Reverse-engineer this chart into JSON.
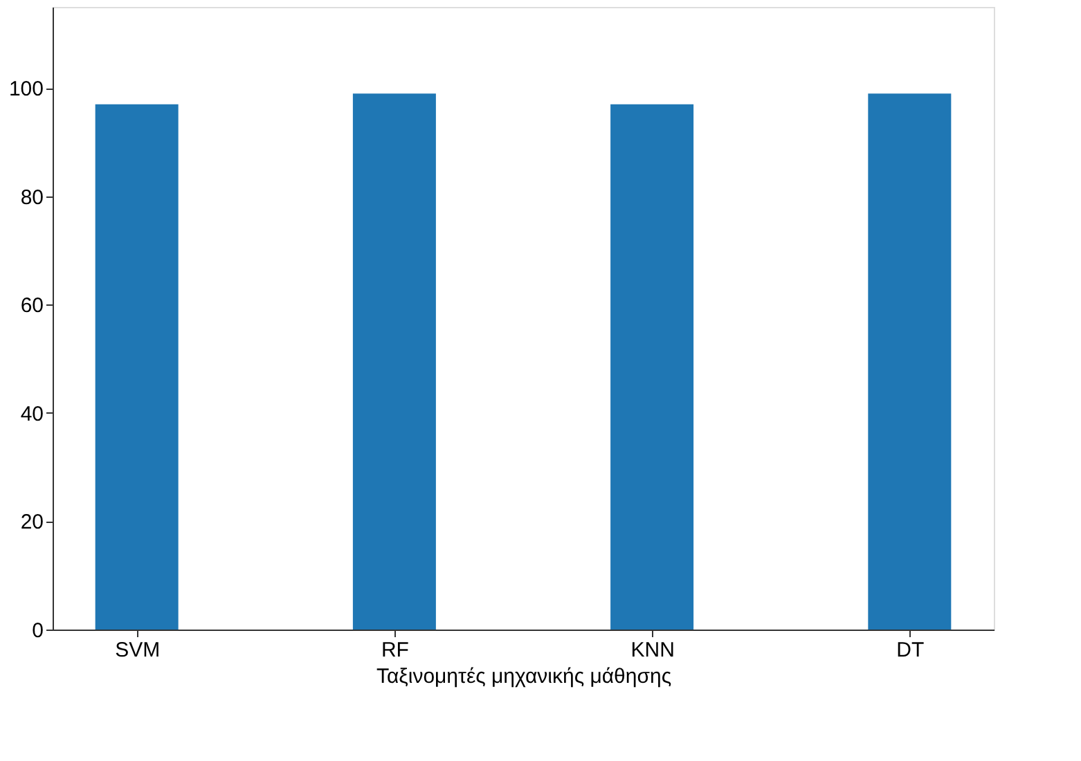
{
  "chart_data": {
    "type": "bar",
    "xlabel": "Ταξινομητές μηχανικής μάθησης",
    "categories": [
      "SVM",
      "RF",
      "KNN",
      "DT"
    ],
    "values": [
      97,
      99,
      97,
      99
    ],
    "color": "#1f77b4",
    "ylim": [
      0,
      115
    ],
    "yticks": [
      0,
      20,
      40,
      60,
      80,
      100
    ],
    "grid": false
  }
}
